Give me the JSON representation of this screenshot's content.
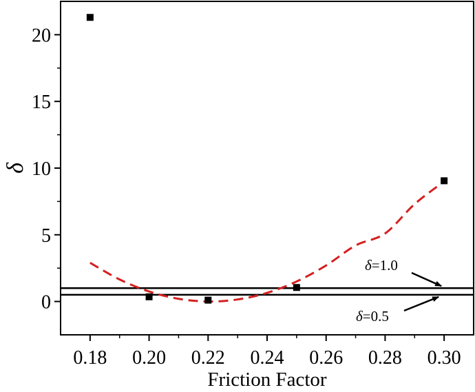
{
  "chart_data": {
    "type": "scatter",
    "xlabel": "Friction Factor",
    "ylabel": "δ",
    "xlim": [
      0.17,
      0.31
    ],
    "ylim": [
      -2.5,
      22.5
    ],
    "x_ticks": [
      0.18,
      0.2,
      0.22,
      0.24,
      0.26,
      0.28,
      0.3
    ],
    "x_tick_labels": [
      "0.18",
      "0.20",
      "0.22",
      "0.24",
      "0.26",
      "0.28",
      "0.30"
    ],
    "y_ticks": [
      0,
      5,
      10,
      15,
      20
    ],
    "y_tick_labels": [
      "0",
      "5",
      "10",
      "15",
      "20"
    ],
    "grid": false,
    "series": [
      {
        "kind": "scatter",
        "marker": "square",
        "color": "#000000",
        "x": [
          0.18,
          0.2,
          0.22,
          0.25,
          0.3
        ],
        "y": [
          21.3,
          0.35,
          0.1,
          1.05,
          9.05
        ]
      },
      {
        "kind": "fit-curve",
        "style": "dashed",
        "color": "#d42020",
        "x": [
          0.18,
          0.19,
          0.2,
          0.21,
          0.22,
          0.23,
          0.24,
          0.25,
          0.26,
          0.27,
          0.28,
          0.29,
          0.3
        ],
        "y": [
          2.9,
          1.65,
          0.75,
          0.2,
          0.0,
          0.15,
          0.65,
          1.5,
          2.7,
          4.2,
          5.1,
          7.3,
          9.0
        ]
      }
    ],
    "reference_lines": [
      {
        "y": 1.0,
        "label_symbol": "δ",
        "label_value": "=1.0"
      },
      {
        "y": 0.5,
        "label_symbol": "δ",
        "label_value": "=0.5"
      }
    ]
  }
}
